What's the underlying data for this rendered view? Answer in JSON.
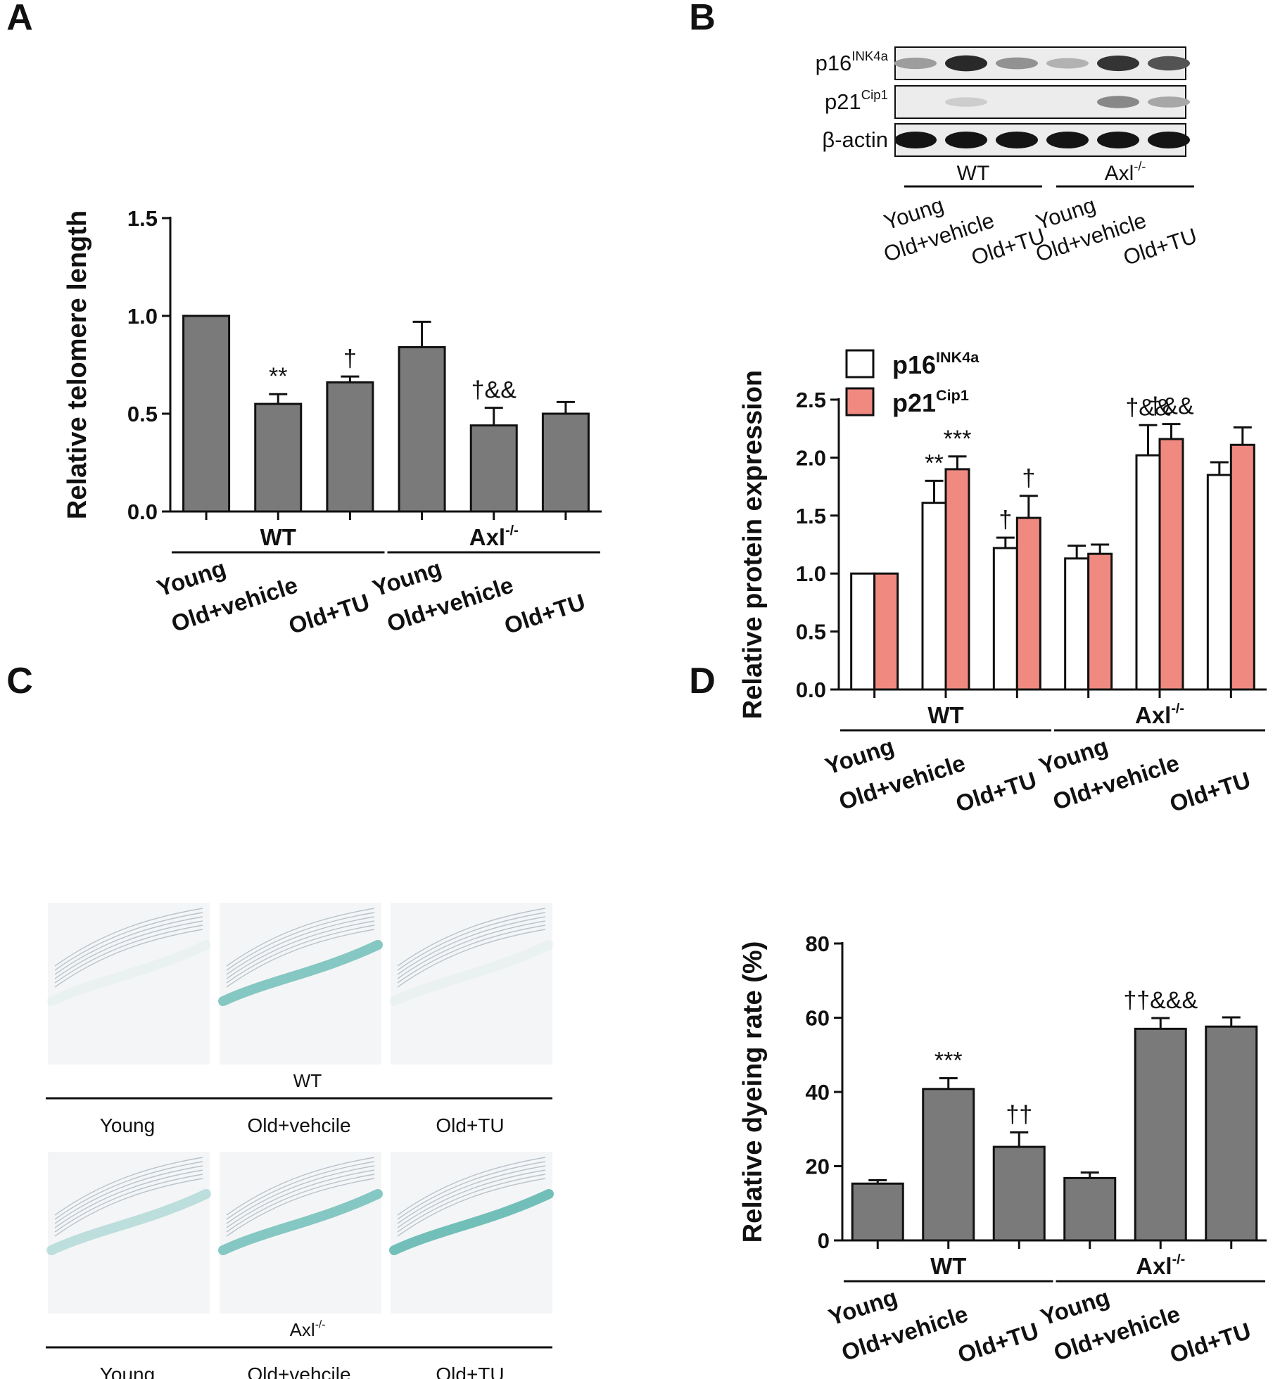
{
  "panel_labels": {
    "a": "A",
    "b": "B",
    "c": "C",
    "d": "D"
  },
  "colors": {
    "gray_bar": "#7a7a7a",
    "p21_bar": "#f08a80",
    "p16_bar": "#ffffff",
    "stain": "#3aa8a0"
  },
  "chart_data": [
    {
      "panel": "A",
      "type": "bar",
      "ylabel": "Relative telomere length",
      "ylim": [
        0,
        1.5
      ],
      "yticks": [
        "0.0",
        "0.5",
        "1.0",
        "1.5"
      ],
      "categories": [
        "Young",
        "Old+vehicle",
        "Old+TU",
        "Young",
        "Old+vehicle",
        "Old+TU"
      ],
      "groups": [
        {
          "name": "WT",
          "span": [
            0,
            2
          ]
        },
        {
          "name": "Axl",
          "sup": "-/-",
          "span": [
            3,
            5
          ]
        }
      ],
      "series": [
        {
          "values": [
            1.0,
            0.55,
            0.66,
            0.84,
            0.44,
            0.5
          ],
          "errors": [
            0,
            0.05,
            0.03,
            0.13,
            0.09,
            0.06
          ]
        }
      ],
      "annotations": [
        "",
        "**",
        "†",
        "",
        "†&&",
        ""
      ]
    },
    {
      "panel": "B",
      "type": "bar",
      "ylabel": "Relative protein expression",
      "ylim": [
        0,
        2.5
      ],
      "yticks": [
        "0.0",
        "0.5",
        "1.0",
        "1.5",
        "2.0",
        "2.5"
      ],
      "categories": [
        "Young",
        "Old+vehicle",
        "Old+TU",
        "Young",
        "Old+vehicle",
        "Old+TU"
      ],
      "groups": [
        {
          "name": "WT",
          "span": [
            0,
            2
          ]
        },
        {
          "name": "Axl",
          "sup": "-/-",
          "span": [
            3,
            5
          ]
        }
      ],
      "legend_position": "top-left",
      "series": [
        {
          "name": "p16",
          "sup": "INK4a",
          "values": [
            1.0,
            1.61,
            1.22,
            1.13,
            2.02,
            1.85
          ],
          "errors": [
            0,
            0.19,
            0.09,
            0.11,
            0.26,
            0.11
          ],
          "annotations": [
            "",
            "**",
            "†",
            "",
            "†&&",
            ""
          ]
        },
        {
          "name": "p21",
          "sup": "Cip1",
          "values": [
            1.0,
            1.9,
            1.48,
            1.17,
            2.16,
            2.11
          ],
          "errors": [
            0,
            0.11,
            0.19,
            0.08,
            0.13,
            0.15
          ],
          "annotations": [
            "",
            "***",
            "†",
            "",
            "†&&",
            ""
          ]
        }
      ]
    },
    {
      "panel": "D",
      "type": "bar",
      "ylabel": "Relative dyeing rate (%)",
      "ylim": [
        0,
        80
      ],
      "yticks": [
        "0",
        "20",
        "40",
        "60",
        "80"
      ],
      "categories": [
        "Young",
        "Old+vehicle",
        "Old+TU",
        "Young",
        "Old+vehicle",
        "Old+TU"
      ],
      "groups": [
        {
          "name": "WT",
          "span": [
            0,
            2
          ]
        },
        {
          "name": "Axl",
          "sup": "-/-",
          "span": [
            3,
            5
          ]
        }
      ],
      "series": [
        {
          "values": [
            15.3,
            40.8,
            25.2,
            16.8,
            57.0,
            57.6
          ],
          "errors": [
            0.9,
            2.9,
            3.9,
            1.5,
            2.9,
            2.5
          ]
        }
      ],
      "annotations": [
        "",
        "***",
        "††",
        "",
        "††&&&",
        ""
      ]
    }
  ],
  "western_blot": {
    "rows": [
      {
        "name": "p16",
        "sup": "INK4a",
        "intensities": [
          0.35,
          0.9,
          0.4,
          0.25,
          0.85,
          0.7
        ]
      },
      {
        "name": "p21",
        "sup": "Cip1",
        "intensities": [
          0.0,
          0.12,
          0.0,
          0.0,
          0.45,
          0.3
        ]
      },
      {
        "name": "β-actin",
        "sup": "",
        "intensities": [
          1.0,
          1.0,
          1.0,
          1.0,
          1.0,
          1.0
        ]
      }
    ],
    "lanes": [
      "Young",
      "Old+vehicle",
      "Old+TU",
      "Young",
      "Old+vehicle",
      "Old+TU"
    ],
    "groups": [
      {
        "name": "WT",
        "span": [
          0,
          2
        ]
      },
      {
        "name": "Axl",
        "sup": "-/-",
        "span": [
          3,
          5
        ]
      }
    ]
  },
  "histology": {
    "rows": [
      {
        "group": "WT",
        "group_sup": "",
        "captions": [
          "Young",
          "Old+vehcile",
          "Old+TU"
        ],
        "stain_levels": [
          0.05,
          0.6,
          0.05
        ]
      },
      {
        "group": "Axl",
        "group_sup": "-/-",
        "captions": [
          "Young",
          "Old+vehcile",
          "Old+TU"
        ],
        "stain_levels": [
          0.3,
          0.6,
          0.7
        ]
      }
    ]
  }
}
